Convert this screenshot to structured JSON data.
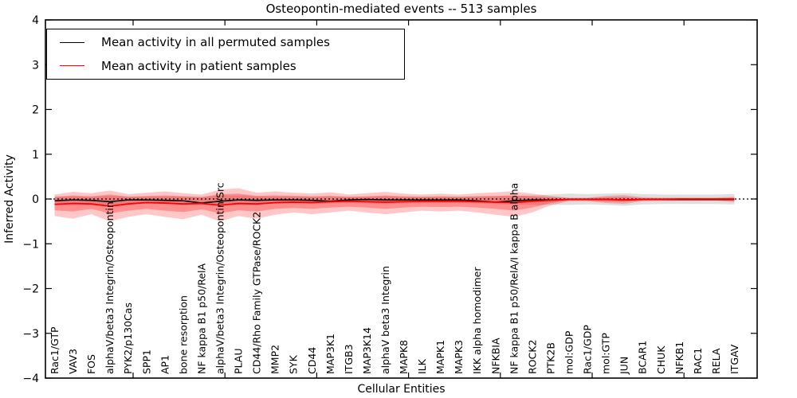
{
  "figure": {
    "title": "Osteopontin-mediated events -- 513 samples",
    "xlabel": "Cellular Entities",
    "ylabel": "Inferred Activity"
  },
  "legend": {
    "items": [
      {
        "label": "Mean activity in all permuted samples",
        "color": "#000000"
      },
      {
        "label": "Mean activity in patient samples",
        "color": "#ff0000"
      }
    ]
  },
  "chart_data": {
    "type": "line",
    "title": "Osteopontin-mediated events -- 513 samples",
    "xlabel": "Cellular Entities",
    "ylabel": "Inferred Activity",
    "ylim": [
      -4,
      4
    ],
    "grid": false,
    "legend_position": "upper left",
    "zero_line": 0,
    "ytick_values": [
      4,
      3,
      2,
      1,
      0,
      -1,
      -2,
      -3,
      -4
    ],
    "ytick_labels": [
      "4",
      "3",
      "2",
      "1",
      "0",
      "−1",
      "−2",
      "−3",
      "−4"
    ],
    "categories": [
      "Rac1/GTP",
      "VAV3",
      "FOS",
      "alphaV/beta3 Integrin/Osteopontin",
      "PYK2/p130Cas",
      "SPP1",
      "AP1",
      "bone resorption",
      "NF kappa B1 p50/RelA",
      "alphaV/beta3 Integrin/Osteopontin/Src",
      "PLAU",
      "CD44/Rho Family GTPase/ROCK2",
      "MMP2",
      "SYK",
      "CD44",
      "MAP3K1",
      "ITGB3",
      "MAP3K14",
      "alphaV beta3 Integrin",
      "MAPK8",
      "ILK",
      "MAPK1",
      "MAPK3",
      "IKK alpha homodimer",
      "NFKBIA",
      "NF kappa B1 p50/RelA/I kappa B alpha",
      "ROCK2",
      "PTK2B",
      "mol:GDP",
      "Rac1/GDP",
      "mol:GTP",
      "JUN",
      "BCAR1",
      "CHUK",
      "NFKB1",
      "RAC1",
      "RELA",
      "ITGAV"
    ],
    "series": [
      {
        "name": "Mean activity in all permuted samples",
        "color": "#000000",
        "values": [
          -0.04,
          -0.02,
          -0.03,
          -0.06,
          -0.02,
          -0.02,
          -0.03,
          -0.04,
          -0.09,
          -0.05,
          -0.02,
          -0.03,
          -0.02,
          -0.02,
          -0.03,
          -0.05,
          -0.02,
          -0.01,
          -0.02,
          -0.02,
          -0.02,
          -0.02,
          -0.02,
          -0.04,
          -0.07,
          -0.04,
          -0.02,
          -0.02,
          -0.01,
          -0.01,
          -0.01,
          -0.02,
          -0.01,
          -0.01,
          -0.01,
          -0.01,
          -0.01,
          -0.01
        ]
      },
      {
        "name": "Mean activity in patient samples",
        "color": "#ff0000",
        "values": [
          -0.12,
          -0.1,
          -0.11,
          -0.16,
          -0.11,
          -0.08,
          -0.09,
          -0.11,
          -0.1,
          -0.14,
          -0.1,
          -0.11,
          -0.08,
          -0.07,
          -0.08,
          -0.06,
          -0.05,
          -0.06,
          -0.07,
          -0.06,
          -0.05,
          -0.05,
          -0.05,
          -0.06,
          -0.07,
          -0.08,
          -0.05,
          -0.03,
          -0.01,
          -0.01,
          -0.01,
          -0.02,
          -0.01,
          -0.01,
          0.0,
          0.0,
          0.0,
          0.0
        ]
      }
    ],
    "bands": [
      {
        "name": "permuted-range",
        "color": "#787878",
        "opacity": 0.24,
        "upper": [
          0.06,
          0.06,
          0.05,
          0.07,
          0.06,
          0.05,
          0.06,
          0.06,
          0.05,
          0.08,
          0.08,
          0.06,
          0.06,
          0.06,
          0.05,
          0.06,
          0.05,
          0.05,
          0.06,
          0.05,
          0.05,
          0.05,
          0.05,
          0.06,
          0.06,
          0.07,
          0.08,
          0.1,
          0.12,
          0.11,
          0.12,
          0.13,
          0.11,
          0.1,
          0.1,
          0.1,
          0.1,
          0.11
        ],
        "lower": [
          -0.12,
          -0.11,
          -0.1,
          -0.13,
          -0.11,
          -0.1,
          -0.11,
          -0.12,
          -0.12,
          -0.14,
          -0.13,
          -0.12,
          -0.11,
          -0.1,
          -0.11,
          -0.1,
          -0.09,
          -0.1,
          -0.11,
          -0.1,
          -0.09,
          -0.09,
          -0.09,
          -0.1,
          -0.11,
          -0.12,
          -0.13,
          -0.13,
          -0.13,
          -0.12,
          -0.13,
          -0.15,
          -0.12,
          -0.11,
          -0.11,
          -0.11,
          -0.11,
          -0.12
        ]
      },
      {
        "name": "patient-range-outer",
        "color": "#ff0000",
        "opacity": 0.22,
        "upper": [
          0.1,
          0.16,
          0.13,
          0.19,
          0.11,
          0.14,
          0.17,
          0.13,
          0.1,
          0.21,
          0.24,
          0.14,
          0.17,
          0.14,
          0.12,
          0.15,
          0.1,
          0.13,
          0.16,
          0.12,
          0.1,
          0.12,
          0.1,
          0.13,
          0.15,
          0.17,
          0.12,
          0.07,
          0.03,
          0.03,
          0.07,
          0.09,
          0.04,
          0.03,
          0.03,
          0.03,
          0.03,
          0.05
        ],
        "lower": [
          -0.38,
          -0.44,
          -0.34,
          -0.5,
          -0.4,
          -0.34,
          -0.4,
          -0.45,
          -0.35,
          -0.5,
          -0.38,
          -0.44,
          -0.35,
          -0.3,
          -0.34,
          -0.3,
          -0.26,
          -0.3,
          -0.34,
          -0.3,
          -0.26,
          -0.28,
          -0.26,
          -0.3,
          -0.35,
          -0.4,
          -0.3,
          -0.14,
          -0.05,
          -0.05,
          -0.09,
          -0.11,
          -0.05,
          -0.04,
          -0.04,
          -0.04,
          -0.04,
          -0.07
        ]
      },
      {
        "name": "patient-range-inner",
        "color": "#ff0000",
        "opacity": 0.28,
        "upper": [
          0.04,
          0.08,
          0.06,
          0.1,
          0.05,
          0.07,
          0.08,
          0.06,
          0.04,
          0.11,
          0.12,
          0.07,
          0.08,
          0.07,
          0.06,
          0.07,
          0.05,
          0.06,
          0.08,
          0.06,
          0.05,
          0.06,
          0.05,
          0.06,
          0.07,
          0.08,
          0.06,
          0.04,
          0.02,
          0.02,
          0.04,
          0.05,
          0.02,
          0.02,
          0.02,
          0.02,
          0.02,
          0.03
        ],
        "lower": [
          -0.25,
          -0.28,
          -0.22,
          -0.32,
          -0.26,
          -0.22,
          -0.26,
          -0.29,
          -0.23,
          -0.32,
          -0.25,
          -0.28,
          -0.22,
          -0.2,
          -0.22,
          -0.19,
          -0.17,
          -0.19,
          -0.22,
          -0.19,
          -0.17,
          -0.18,
          -0.17,
          -0.19,
          -0.22,
          -0.26,
          -0.19,
          -0.09,
          -0.03,
          -0.03,
          -0.06,
          -0.07,
          -0.03,
          -0.03,
          -0.03,
          -0.03,
          -0.03,
          -0.04
        ]
      }
    ]
  }
}
